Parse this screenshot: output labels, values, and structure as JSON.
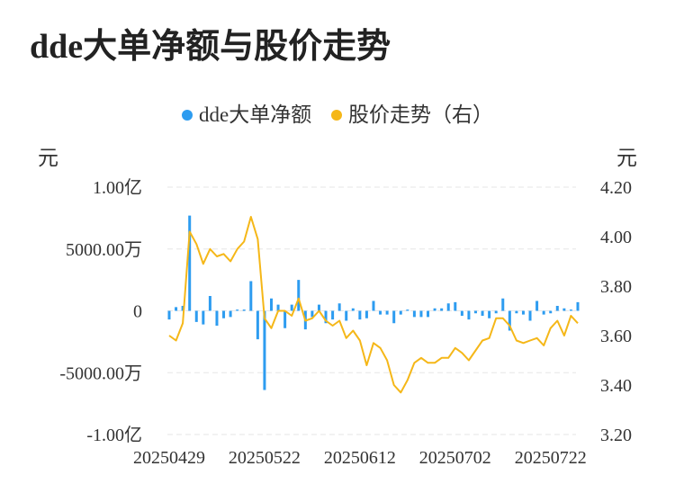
{
  "title": "dde大单净额与股价走势",
  "legend": {
    "items": [
      {
        "label": "dde大单净额",
        "color": "#2d9cf0"
      },
      {
        "label": "股价走势（右）",
        "color": "#f5b718"
      }
    ]
  },
  "axes": {
    "left_unit": "元",
    "right_unit": "元"
  },
  "chart_data": {
    "type": "bar+line",
    "title": "dde大单净额与股价走势",
    "left_axis": {
      "unit": "元",
      "ylim": [
        -100000000,
        100000000
      ],
      "ticks": [
        100000000,
        50000000,
        0,
        -50000000,
        -100000000
      ],
      "tick_labels": [
        "1.00亿",
        "5000.00万",
        "0",
        "-5000.00万",
        "-1.00亿"
      ]
    },
    "right_axis": {
      "unit": "元",
      "ylim": [
        3.2,
        4.2
      ],
      "ticks": [
        4.2,
        4.0,
        3.8,
        3.6,
        3.4,
        3.2
      ],
      "tick_labels": [
        "4.20",
        "4.00",
        "3.80",
        "3.60",
        "3.40",
        "3.20"
      ]
    },
    "x_tick_labels": [
      {
        "label": "20250429",
        "index": 0
      },
      {
        "label": "20250522",
        "index": 14
      },
      {
        "label": "20250612",
        "index": 28
      },
      {
        "label": "20250702",
        "index": 42
      },
      {
        "label": "20250722",
        "index": 56
      }
    ],
    "grid": true,
    "legend_position": "top",
    "series": [
      {
        "name": "dde大单净额",
        "type": "bar",
        "color": "#2d9cf0",
        "values": [
          -7000000,
          3000000,
          4000000,
          77000000,
          -9000000,
          -11000000,
          12000000,
          -12000000,
          -6000000,
          -5000000,
          1000000,
          1000000,
          24000000,
          -23000000,
          -64000000,
          10000000,
          5000000,
          -14000000,
          5000000,
          25000000,
          -15000000,
          -5000000,
          5000000,
          -10000000,
          -7000000,
          6000000,
          -8000000,
          2000000,
          -7000000,
          -6000000,
          8000000,
          -3000000,
          -3000000,
          -10000000,
          -3000000,
          1000000,
          -5000000,
          -5000000,
          -5000000,
          2000000,
          2000000,
          6000000,
          7000000,
          -4000000,
          -7000000,
          -2000000,
          -4000000,
          -6000000,
          -2000000,
          10000000,
          -16000000,
          -2000000,
          -3000000,
          -8000000,
          8000000,
          -3000000,
          -2000000,
          4000000,
          2000000,
          1000000,
          7000000
        ]
      },
      {
        "name": "股价走势（右）",
        "type": "line",
        "color": "#f5b718",
        "values": [
          3.6,
          3.58,
          3.65,
          4.02,
          3.97,
          3.89,
          3.95,
          3.92,
          3.93,
          3.9,
          3.95,
          3.98,
          4.08,
          3.99,
          3.67,
          3.63,
          3.7,
          3.7,
          3.68,
          3.75,
          3.66,
          3.67,
          3.7,
          3.66,
          3.64,
          3.66,
          3.59,
          3.62,
          3.58,
          3.48,
          3.57,
          3.55,
          3.5,
          3.4,
          3.37,
          3.42,
          3.49,
          3.51,
          3.49,
          3.49,
          3.51,
          3.51,
          3.55,
          3.53,
          3.5,
          3.54,
          3.58,
          3.59,
          3.67,
          3.67,
          3.64,
          3.58,
          3.57,
          3.58,
          3.59,
          3.56,
          3.63,
          3.66,
          3.6,
          3.68,
          3.65
        ]
      }
    ]
  }
}
